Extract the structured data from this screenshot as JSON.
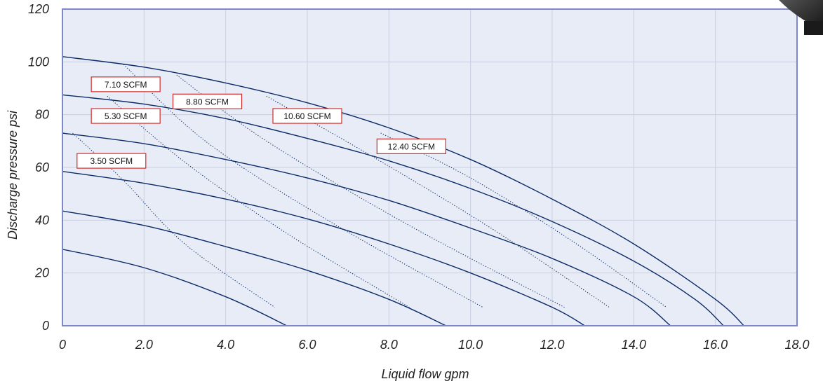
{
  "chart_data": {
    "type": "line",
    "title": "",
    "xlabel": "Liquid flow gpm",
    "ylabel": "Discharge pressure psi",
    "xlim": [
      0,
      18
    ],
    "ylim": [
      0,
      120
    ],
    "x_ticks": [
      "0",
      "2.0",
      "4.0",
      "6.0",
      "8.0",
      "10.0",
      "12.0",
      "14.0",
      "16.0",
      "18.0"
    ],
    "y_ticks": [
      "0",
      "20",
      "40",
      "60",
      "80",
      "100",
      "120"
    ],
    "grid": true,
    "colors": {
      "plot_bg": "#e8ecf6",
      "grid": "#c9cfe2",
      "frame": "#7f86c9",
      "curve": "#0b2b66",
      "label_border": "#d22a2a"
    },
    "series": [
      {
        "points": [
          [
            0,
            29
          ],
          [
            2,
            22
          ],
          [
            4,
            11
          ],
          [
            5.5,
            0
          ]
        ]
      },
      {
        "points": [
          [
            0,
            43.5
          ],
          [
            2,
            38
          ],
          [
            4,
            30
          ],
          [
            6,
            21
          ],
          [
            8,
            10
          ],
          [
            9.4,
            0
          ]
        ]
      },
      {
        "points": [
          [
            0,
            58.5
          ],
          [
            2,
            54
          ],
          [
            4,
            48
          ],
          [
            6,
            40.5
          ],
          [
            8,
            31
          ],
          [
            10,
            20
          ],
          [
            12,
            7
          ],
          [
            12.8,
            0
          ]
        ]
      },
      {
        "points": [
          [
            0,
            73
          ],
          [
            2,
            69
          ],
          [
            4,
            63
          ],
          [
            6,
            56
          ],
          [
            8,
            47.5
          ],
          [
            10,
            37
          ],
          [
            12,
            25.5
          ],
          [
            14,
            11
          ],
          [
            14.9,
            0
          ]
        ]
      },
      {
        "points": [
          [
            0,
            87.5
          ],
          [
            2,
            84
          ],
          [
            4,
            78.5
          ],
          [
            6,
            71
          ],
          [
            8,
            62.5
          ],
          [
            10,
            52
          ],
          [
            12,
            39.5
          ],
          [
            14,
            24.5
          ],
          [
            15.5,
            10
          ],
          [
            16.2,
            0
          ]
        ]
      },
      {
        "points": [
          [
            0,
            102
          ],
          [
            2,
            98
          ],
          [
            4,
            92
          ],
          [
            6,
            84.5
          ],
          [
            8,
            75
          ],
          [
            10,
            63
          ],
          [
            12,
            48
          ],
          [
            14,
            31
          ],
          [
            16,
            10
          ],
          [
            16.7,
            0
          ]
        ]
      }
    ],
    "air_lines": [
      {
        "label": "3.50 SCFM",
        "label_x": 1.2,
        "label_y": 62.5,
        "points": [
          [
            0.25,
            73
          ],
          [
            1.5,
            55
          ],
          [
            3,
            31
          ],
          [
            5.2,
            7
          ]
        ]
      },
      {
        "label": "5.30 SCFM",
        "label_x": 1.55,
        "label_y": 79.5,
        "points": [
          [
            1.1,
            87
          ],
          [
            3,
            62
          ],
          [
            5.5,
            35
          ],
          [
            8.5,
            7
          ]
        ]
      },
      {
        "label": "7.10 SCFM",
        "label_x": 1.55,
        "label_y": 91.5,
        "points": [
          [
            1.5,
            99
          ],
          [
            3.5,
            70
          ],
          [
            6.5,
            40
          ],
          [
            10.3,
            7
          ]
        ]
      },
      {
        "label": "8.80 SCFM",
        "label_x": 3.55,
        "label_y": 85,
        "points": [
          [
            2.8,
            95
          ],
          [
            5,
            70
          ],
          [
            8.5,
            38
          ],
          [
            12.3,
            7
          ]
        ]
      },
      {
        "label": "10.60 SCFM",
        "label_x": 6.0,
        "label_y": 79.5,
        "points": [
          [
            5,
            87
          ],
          [
            7.5,
            65
          ],
          [
            10.5,
            37
          ],
          [
            13.4,
            7
          ]
        ]
      },
      {
        "label": "12.40 SCFM",
        "label_x": 8.55,
        "label_y": 68,
        "points": [
          [
            7.8,
            73
          ],
          [
            10,
            56
          ],
          [
            12.5,
            32
          ],
          [
            14.8,
            7
          ]
        ]
      }
    ]
  }
}
